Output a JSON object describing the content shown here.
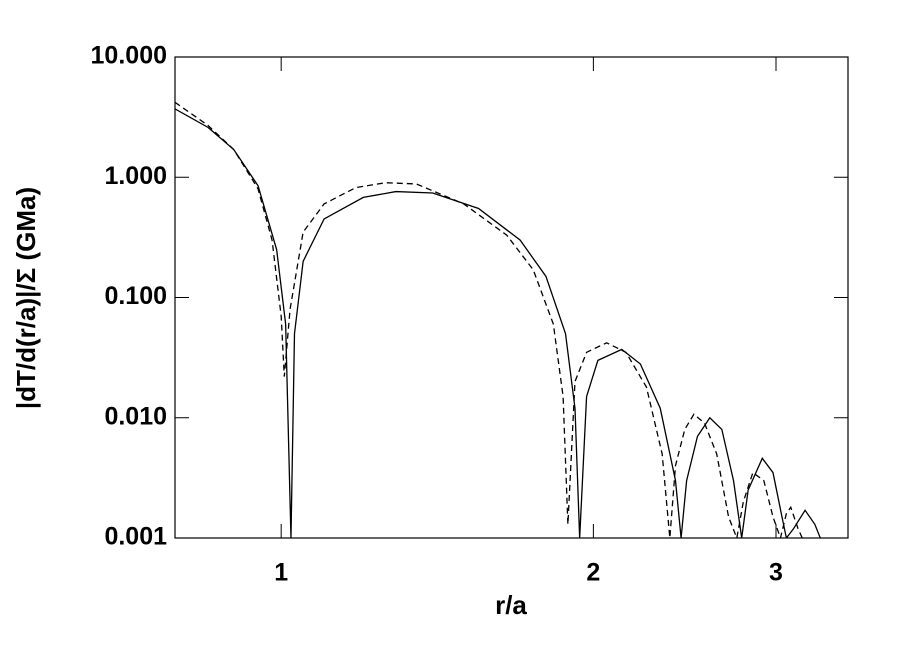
{
  "chart_data": {
    "type": "line",
    "x_label": "r/a",
    "y_label": "|dT/d(r/a)|/Σ (GMa)",
    "xscale": "log",
    "yscale": "log",
    "xlim": [
      0.79,
      3.52
    ],
    "ylim": [
      0.001,
      10
    ],
    "xticks": [
      1,
      2,
      3
    ],
    "yticks": [
      {
        "value": 10,
        "label": "10.000"
      },
      {
        "value": 1,
        "label": "1.000"
      },
      {
        "value": 0.1,
        "label": "0.100"
      },
      {
        "value": 0.01,
        "label": "0.010"
      },
      {
        "value": 0.001,
        "label": "0.001"
      }
    ],
    "series": [
      {
        "color": "#000000",
        "dash": "solid",
        "x": [
          0.79,
          0.85,
          0.9,
          0.95,
          0.99,
          1.01,
          1.022,
          1.03,
          1.05,
          1.1,
          1.2,
          1.29,
          1.4,
          1.55,
          1.7,
          1.8,
          1.88,
          1.92,
          1.94,
          1.97,
          2.02,
          2.13,
          2.22,
          2.32,
          2.4,
          2.43,
          2.46,
          2.52,
          2.59,
          2.66,
          2.73,
          2.78,
          2.82,
          2.91,
          2.98,
          3.04,
          3.07,
          3.12,
          3.2,
          3.27,
          3.31
        ],
        "values": [
          3.7,
          2.6,
          1.7,
          0.85,
          0.25,
          0.06,
          0.001,
          0.05,
          0.2,
          0.45,
          0.68,
          0.76,
          0.74,
          0.55,
          0.3,
          0.15,
          0.05,
          0.012,
          0.001,
          0.015,
          0.03,
          0.037,
          0.028,
          0.012,
          0.003,
          0.001,
          0.003,
          0.007,
          0.01,
          0.008,
          0.003,
          0.001,
          0.0025,
          0.0046,
          0.0035,
          0.0015,
          0.001,
          0.0012,
          0.0017,
          0.0013,
          0.001
        ]
      },
      {
        "color": "#000000",
        "dash": "dashed",
        "x": [
          0.79,
          0.85,
          0.9,
          0.95,
          0.98,
          1.0,
          1.007,
          1.02,
          1.05,
          1.1,
          1.18,
          1.26,
          1.35,
          1.5,
          1.65,
          1.75,
          1.83,
          1.87,
          1.89,
          1.92,
          1.97,
          2.06,
          2.15,
          2.25,
          2.33,
          2.37,
          2.4,
          2.45,
          2.5,
          2.56,
          2.63,
          2.7,
          2.75,
          2.79,
          2.85,
          2.92,
          2.98,
          3.03,
          3.07,
          3.1,
          3.15,
          3.18
        ],
        "values": [
          4.2,
          2.7,
          1.7,
          0.8,
          0.3,
          0.07,
          0.022,
          0.08,
          0.35,
          0.6,
          0.82,
          0.9,
          0.88,
          0.6,
          0.33,
          0.17,
          0.06,
          0.015,
          0.0013,
          0.02,
          0.035,
          0.042,
          0.035,
          0.018,
          0.005,
          0.001,
          0.004,
          0.008,
          0.0107,
          0.009,
          0.005,
          0.0015,
          0.001,
          0.002,
          0.0035,
          0.003,
          0.0015,
          0.001,
          0.0016,
          0.0018,
          0.0012,
          0.001
        ]
      }
    ]
  }
}
